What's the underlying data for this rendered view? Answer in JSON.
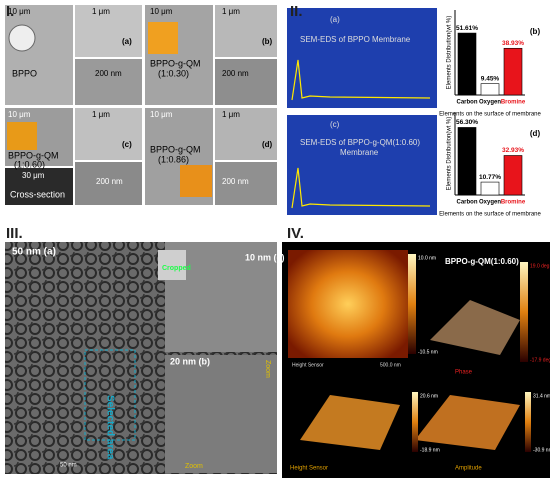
{
  "panels": [
    {
      "label": "I.",
      "texts": [
        "10 μm",
        "1 μm",
        "(a)",
        "BPPO",
        "200 nm",
        "10 μm",
        "1 μm",
        "(b)",
        "BPPO-g-QM",
        "(1:0.30)",
        "200 nm",
        "10 μm",
        "1 μm",
        "(c)",
        "BPPO-g-QM",
        "(1:0.60)",
        "30 μm",
        "Cross-section",
        "200 nm",
        "10 μm",
        "1 μm",
        "(d)",
        "BPPO-g-QM",
        "(1:0.86)",
        "200 nm"
      ]
    },
    {
      "label": "II.",
      "texts": [
        "(a)",
        "SEM-EDS of BPPO Membrane",
        "(c)",
        "SEM-EDS of BPPO-g-QM(1:0.60)",
        "Membrane"
      ],
      "charts": [
        {
          "type": "bar",
          "panel_label": "(b)",
          "y_label": "Elements Distribution(wt %)",
          "x_label": "Elements on the surface of membrane",
          "categories": [
            "Carbon",
            "Oxygen",
            "Bromine"
          ],
          "values": [
            51.61,
            9.45,
            38.93
          ],
          "value_labels": [
            "51.61%",
            "9.45%",
            "38.93%"
          ],
          "colors": [
            "#000000",
            "#ffffff",
            "#e8141b"
          ]
        },
        {
          "type": "bar",
          "panel_label": "(d)",
          "y_label": "Elements Distribution(wt %)",
          "x_label": "Elements on the surface of membrane",
          "categories": [
            "Carbon",
            "Oxygen",
            "Bromine"
          ],
          "values": [
            56.3,
            10.77,
            32.93
          ],
          "value_labels": [
            "56.30%",
            "10.77%",
            "32.93%"
          ],
          "colors": [
            "#000000",
            "#ffffff",
            "#e8141b"
          ]
        }
      ]
    },
    {
      "label": "III.",
      "texts": [
        "50 nm (a)",
        "Cropped",
        "10 nm (c)",
        "20 nm (b)",
        "Selected area",
        "Zoom",
        "Zoom",
        "50 nm"
      ]
    },
    {
      "label": "IV.",
      "texts": [
        "BPPO-g-QM(1:0.60)",
        "10.0 nm",
        "-10.5 nm",
        "Height Sensor",
        "500.0 nm",
        "19.0 deg",
        "-17.9 deg",
        "Phase",
        "20.6 nm",
        "-18.9 nm",
        "31.4 nm",
        "-30.9 nm",
        "Height Sensor",
        "Amplitude"
      ]
    }
  ]
}
